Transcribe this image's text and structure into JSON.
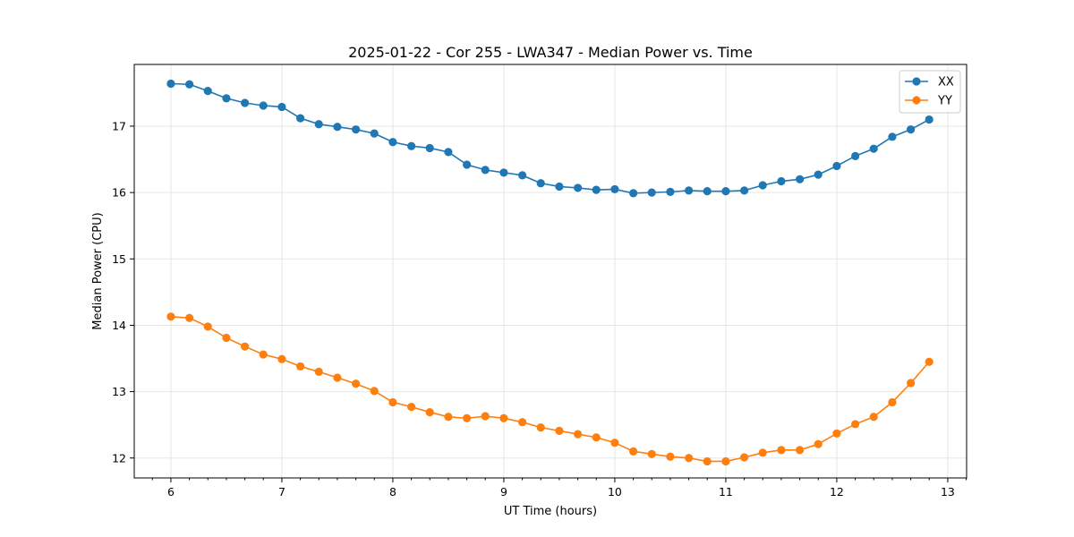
{
  "chart_data": {
    "type": "line",
    "title": "2025-01-22 - Cor 255 - LWA347 - Median Power vs. Time",
    "xlabel": "UT Time (hours)",
    "ylabel": "Median Power (CPU)",
    "xlim": [
      5.67,
      13.17
    ],
    "ylim": [
      11.7,
      17.93
    ],
    "xticks": [
      6,
      7,
      8,
      9,
      10,
      11,
      12,
      13
    ],
    "xtick_labels": [
      "6",
      "7",
      "8",
      "9",
      "10",
      "11",
      "12",
      "13"
    ],
    "yticks": [
      12,
      13,
      14,
      15,
      16,
      17
    ],
    "ytick_labels": [
      "12",
      "13",
      "14",
      "15",
      "16",
      "17"
    ],
    "grid": true,
    "legend_position": "top-right",
    "x": [
      6.0,
      6.167,
      6.333,
      6.5,
      6.667,
      6.833,
      7.0,
      7.167,
      7.333,
      7.5,
      7.667,
      7.833,
      8.0,
      8.167,
      8.333,
      8.5,
      8.667,
      8.833,
      9.0,
      9.167,
      9.333,
      9.5,
      9.667,
      9.833,
      10.0,
      10.167,
      10.333,
      10.5,
      10.667,
      10.833,
      11.0,
      11.167,
      11.333,
      11.5,
      11.667,
      11.833,
      12.0,
      12.167,
      12.333,
      12.5,
      12.667,
      12.833
    ],
    "series": [
      {
        "name": "XX",
        "color": "#1f77b4",
        "values": [
          17.64,
          17.63,
          17.53,
          17.42,
          17.35,
          17.31,
          17.29,
          17.12,
          17.03,
          16.99,
          16.95,
          16.89,
          16.76,
          16.7,
          16.67,
          16.61,
          16.42,
          16.34,
          16.3,
          16.26,
          16.14,
          16.09,
          16.07,
          16.04,
          16.05,
          15.99,
          16.0,
          16.01,
          16.03,
          16.02,
          16.02,
          16.03,
          16.11,
          16.17,
          16.2,
          16.27,
          16.4,
          16.55,
          16.66,
          16.84,
          16.95,
          17.1
        ]
      },
      {
        "name": "YY",
        "color": "#ff7f0e",
        "values": [
          14.13,
          14.11,
          13.98,
          13.81,
          13.68,
          13.56,
          13.49,
          13.38,
          13.3,
          13.21,
          13.12,
          13.01,
          12.84,
          12.77,
          12.69,
          12.62,
          12.6,
          12.63,
          12.6,
          12.54,
          12.46,
          12.41,
          12.36,
          12.31,
          12.23,
          12.1,
          12.06,
          12.02,
          12.0,
          11.95,
          11.95,
          12.01,
          12.08,
          12.12,
          12.12,
          12.21,
          12.37,
          12.51,
          12.62,
          12.84,
          13.13,
          13.45
        ]
      }
    ]
  }
}
